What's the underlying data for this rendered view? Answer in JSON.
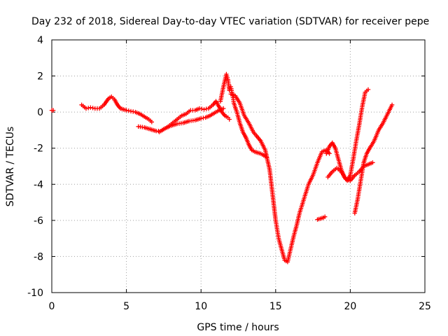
{
  "chart_data": {
    "type": "scatter",
    "title": "Day 232 of 2018, Sidereal Day-to-day VTEC variation (SDTVAR) for receiver pepe",
    "xlabel": "GPS time / hours",
    "ylabel": "SDTVAR / TECUs",
    "xlim": [
      0,
      25
    ],
    "ylim": [
      -10,
      4
    ],
    "xticks": [
      0,
      5,
      10,
      15,
      20,
      25
    ],
    "xtick_labels": [
      "0",
      "5",
      "10",
      "15",
      "20",
      "25"
    ],
    "yticks": [
      -10,
      -8,
      -6,
      -4,
      -2,
      0,
      2,
      4
    ],
    "ytick_labels": [
      "-10",
      "-8",
      "-6",
      "-4",
      "-2",
      "0",
      "2",
      "4"
    ],
    "grid": true,
    "marker": "+",
    "color": "#ff0000",
    "series": [
      {
        "x": [
          0.0,
          0.1
        ],
        "y": [
          0.1,
          0.1
        ]
      },
      {
        "x": [
          2.0,
          2.3,
          2.6,
          2.9,
          3.2,
          3.5,
          3.8,
          4.0,
          4.2,
          4.4,
          4.6,
          4.8,
          5.0,
          5.3,
          5.6,
          5.9,
          6.2,
          6.5,
          6.7
        ],
        "y": [
          0.4,
          0.2,
          0.25,
          0.2,
          0.2,
          0.4,
          0.75,
          0.85,
          0.7,
          0.4,
          0.2,
          0.15,
          0.1,
          0.05,
          0.0,
          -0.1,
          -0.25,
          -0.4,
          -0.55
        ]
      },
      {
        "x": [
          5.8,
          6.2,
          6.6,
          7.0,
          7.3,
          7.6,
          8.0,
          8.4,
          8.8,
          9.2,
          9.6,
          10.0,
          10.3,
          10.6,
          10.9,
          11.2,
          11.5
        ],
        "y": [
          -0.8,
          -0.85,
          -0.95,
          -1.05,
          -1.05,
          -0.9,
          -0.75,
          -0.65,
          -0.6,
          -0.5,
          -0.45,
          -0.35,
          -0.3,
          -0.2,
          -0.05,
          0.1,
          0.2
        ]
      },
      {
        "x": [
          7.2,
          7.5,
          7.8,
          8.1,
          8.4,
          8.7,
          9.0,
          9.3,
          9.6,
          9.9,
          10.2,
          10.5,
          10.8,
          11.0,
          11.2,
          11.4,
          11.6,
          11.8,
          11.9
        ],
        "y": [
          -1.1,
          -0.95,
          -0.8,
          -0.6,
          -0.4,
          -0.2,
          -0.1,
          0.1,
          0.1,
          0.2,
          0.15,
          0.2,
          0.4,
          0.6,
          0.3,
          0.0,
          -0.2,
          -0.3,
          -0.4
        ]
      },
      {
        "x": [
          11.3,
          11.5,
          11.7,
          11.8,
          11.9,
          12.0,
          12.1,
          12.2,
          12.4,
          12.6,
          12.8,
          13.0,
          13.2,
          13.4,
          13.6,
          13.8,
          14.0,
          14.2,
          14.4
        ],
        "y": [
          0.6,
          1.4,
          2.1,
          1.8,
          1.2,
          1.4,
          1.0,
          0.5,
          0.0,
          -0.6,
          -1.1,
          -1.4,
          -1.8,
          -2.1,
          -2.2,
          -2.25,
          -2.3,
          -2.4,
          -2.5
        ]
      },
      {
        "x": [
          12.0,
          12.3,
          12.6,
          12.9,
          13.2,
          13.5,
          13.8,
          14.0,
          14.3,
          14.6,
          14.8,
          15.0,
          15.2,
          15.4,
          15.6,
          15.8,
          16.0,
          16.2,
          16.4,
          16.6,
          16.9,
          17.2,
          17.5,
          17.8,
          18.1,
          18.4,
          18.6
        ],
        "y": [
          1.0,
          0.9,
          0.5,
          -0.2,
          -0.6,
          -1.1,
          -1.4,
          -1.6,
          -2.1,
          -3.2,
          -4.6,
          -6.0,
          -7.0,
          -7.6,
          -8.2,
          -8.3,
          -7.6,
          -6.9,
          -6.3,
          -5.6,
          -4.8,
          -4.0,
          -3.5,
          -2.8,
          -2.2,
          -2.1,
          -2.3
        ]
      },
      {
        "x": [
          17.8,
          18.0,
          18.2,
          18.3
        ],
        "y": [
          -5.95,
          -5.9,
          -5.85,
          -5.8
        ]
      },
      {
        "x": [
          18.4,
          18.6,
          18.8,
          19.0,
          19.2,
          19.4,
          19.6,
          19.8,
          20.0,
          20.2,
          20.4,
          20.6,
          20.8,
          21.0,
          21.2
        ],
        "y": [
          -2.3,
          -1.9,
          -1.7,
          -2.0,
          -2.6,
          -3.2,
          -3.6,
          -3.8,
          -3.5,
          -2.6,
          -1.6,
          -0.7,
          0.3,
          1.1,
          1.25
        ]
      },
      {
        "x": [
          18.5,
          18.8,
          19.1,
          19.4,
          19.7,
          20.0,
          20.3,
          20.6,
          20.9,
          21.2,
          21.5
        ],
        "y": [
          -3.6,
          -3.3,
          -3.1,
          -3.3,
          -3.7,
          -3.8,
          -3.5,
          -3.3,
          -3.0,
          -2.9,
          -2.8
        ]
      },
      {
        "x": [
          20.3,
          20.5,
          20.7,
          20.9,
          21.1,
          21.3,
          21.6,
          21.9,
          22.2,
          22.5,
          22.8
        ],
        "y": [
          -5.6,
          -4.8,
          -3.8,
          -2.8,
          -2.3,
          -2.0,
          -1.6,
          -1.0,
          -0.6,
          -0.1,
          0.4
        ]
      }
    ]
  }
}
